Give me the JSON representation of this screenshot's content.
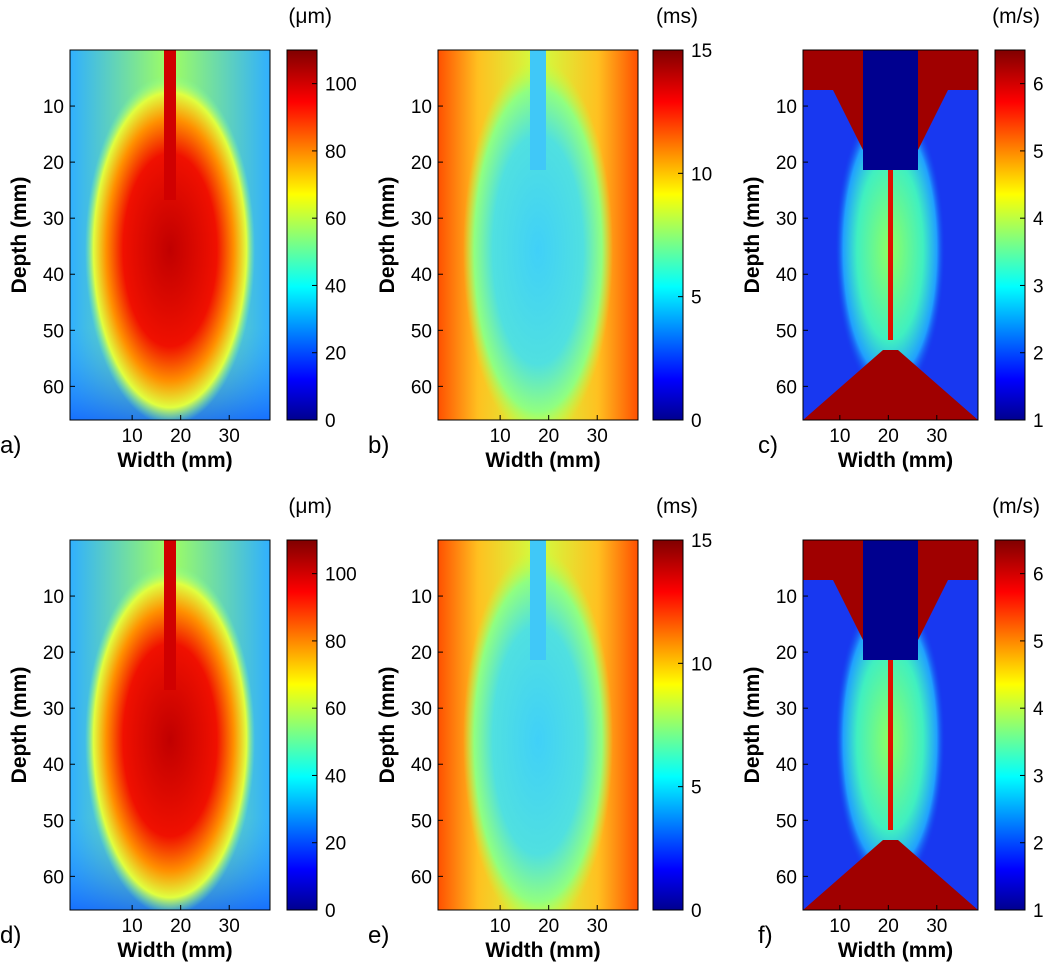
{
  "chart_data": [
    {
      "type": "heatmap",
      "panel_label": "a)",
      "xlabel": "Width (mm)",
      "ylabel": "Depth (mm)",
      "xlim": [
        -2.8,
        38.4
      ],
      "xticks": [
        10,
        20,
        30
      ],
      "ylim": [
        0,
        66
      ],
      "yticks": [
        10,
        20,
        30,
        40,
        50,
        60
      ],
      "colorbar": {
        "unit": "(μm)",
        "clim": [
          0,
          110
        ],
        "ticks": [
          0,
          20,
          40,
          60,
          80,
          100
        ]
      }
    },
    {
      "type": "heatmap",
      "panel_label": "b)",
      "xlabel": "Width (mm)",
      "ylabel": "Depth (mm)",
      "xlim": [
        -2.8,
        38.4
      ],
      "xticks": [
        10,
        20,
        30
      ],
      "ylim": [
        0,
        66
      ],
      "yticks": [
        10,
        20,
        30,
        40,
        50,
        60
      ],
      "colorbar": {
        "unit": "(ms)",
        "clim": [
          0,
          15
        ],
        "ticks": [
          0,
          5,
          10,
          15
        ]
      }
    },
    {
      "type": "heatmap",
      "panel_label": "c)",
      "xlabel": "Width (mm)",
      "ylabel": "Depth (mm)",
      "xlim": [
        2.4,
        38.5
      ],
      "xticks": [
        10,
        20,
        30
      ],
      "ylim": [
        0,
        66
      ],
      "yticks": [
        10,
        20,
        30,
        40,
        50,
        60
      ],
      "colorbar": {
        "unit": "(m/s)",
        "clim": [
          1,
          6.5
        ],
        "ticks": [
          1,
          2,
          3,
          4,
          5,
          6
        ]
      }
    },
    {
      "type": "heatmap",
      "panel_label": "d)",
      "xlabel": "Width (mm)",
      "ylabel": "Depth (mm)",
      "xlim": [
        -2.8,
        38.4
      ],
      "xticks": [
        10,
        20,
        30
      ],
      "ylim": [
        0,
        66
      ],
      "yticks": [
        10,
        20,
        30,
        40,
        50,
        60
      ],
      "colorbar": {
        "unit": "(μm)",
        "clim": [
          0,
          110
        ],
        "ticks": [
          0,
          20,
          40,
          60,
          80,
          100
        ]
      }
    },
    {
      "type": "heatmap",
      "panel_label": "e)",
      "xlabel": "Width (mm)",
      "ylabel": "Depth (mm)",
      "xlim": [
        -2.8,
        38.4
      ],
      "xticks": [
        10,
        20,
        30
      ],
      "ylim": [
        0,
        66
      ],
      "yticks": [
        10,
        20,
        30,
        40,
        50,
        60
      ],
      "colorbar": {
        "unit": "(ms)",
        "clim": [
          0,
          15
        ],
        "ticks": [
          0,
          5,
          10,
          15
        ]
      }
    },
    {
      "type": "heatmap",
      "panel_label": "f)",
      "xlabel": "Width (mm)",
      "ylabel": "Depth (mm)",
      "xlim": [
        2.4,
        38.5
      ],
      "xticks": [
        10,
        20,
        30
      ],
      "ylim": [
        0,
        66
      ],
      "yticks": [
        10,
        20,
        30,
        40,
        50,
        60
      ],
      "colorbar": {
        "unit": "(m/s)",
        "clim": [
          1,
          6.5
        ],
        "ticks": [
          1,
          2,
          3,
          4,
          5,
          6
        ]
      }
    }
  ]
}
